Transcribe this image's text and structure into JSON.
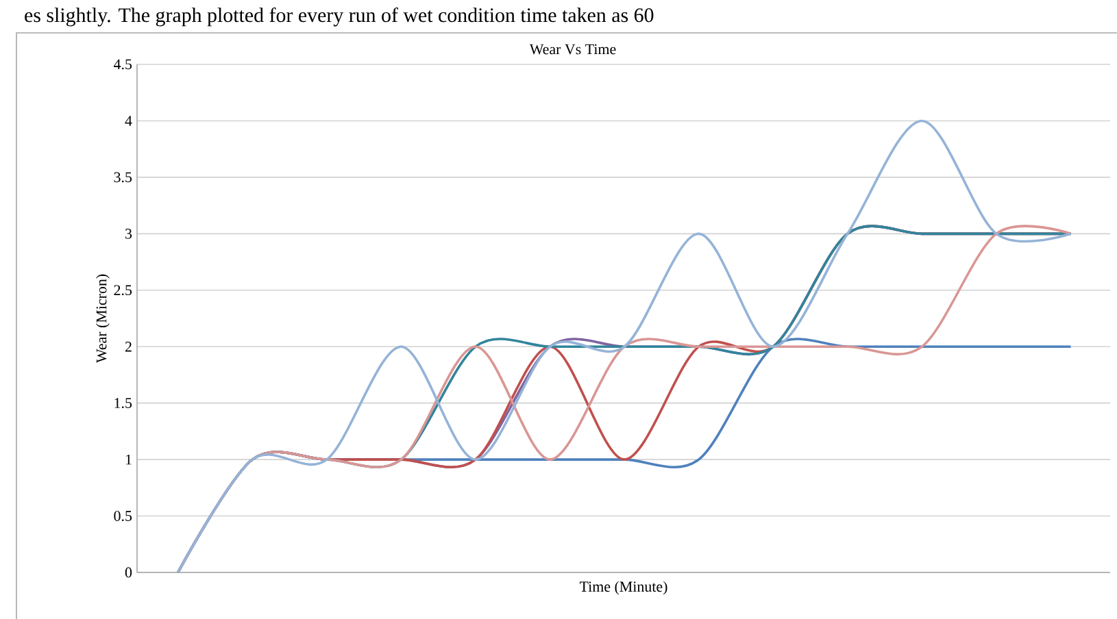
{
  "chart_data": {
    "type": "line",
    "title": "Wear Vs Time",
    "xlabel": "Time (Minute)",
    "ylabel": "Wear (Micron)",
    "annotations": [
      "es slightly. The graph plotted for every run of wet condition time taken as 60"
    ],
    "categories": [
      null,
      null,
      null,
      null,
      null,
      null,
      null,
      null,
      null,
      null,
      null,
      null,
      null
    ],
    "ylim": [
      0,
      4.5
    ],
    "yticks": [
      0,
      0.5,
      1,
      1.5,
      2,
      2.5,
      3,
      3.5,
      4,
      4.5
    ],
    "grid": "y",
    "marker": "none",
    "series": [
      {
        "color": "#4f81bd",
        "values": [
          0,
          1,
          1,
          1,
          1,
          1,
          1,
          1,
          2,
          2,
          2,
          2,
          2
        ]
      },
      {
        "color": "#8064a2",
        "values": [
          0,
          1,
          1,
          1,
          1,
          2,
          2,
          2,
          2,
          3,
          3,
          3,
          3
        ]
      },
      {
        "color": "#c0504d",
        "values": [
          0,
          1,
          1,
          1,
          1,
          2,
          1,
          2,
          2,
          3,
          3,
          3,
          3
        ]
      },
      {
        "color": "#31859c",
        "values": [
          0,
          1,
          1,
          1,
          2,
          2,
          2,
          2,
          2,
          3,
          3,
          3,
          3
        ]
      },
      {
        "color": "#d99694",
        "values": [
          0,
          1,
          1,
          1,
          2,
          1,
          2,
          2,
          2,
          2,
          2,
          3,
          3
        ]
      },
      {
        "color": "#95b3d7",
        "values": [
          0,
          1,
          1,
          2,
          1,
          2,
          2,
          3,
          2,
          3,
          4,
          3,
          3
        ]
      }
    ]
  }
}
